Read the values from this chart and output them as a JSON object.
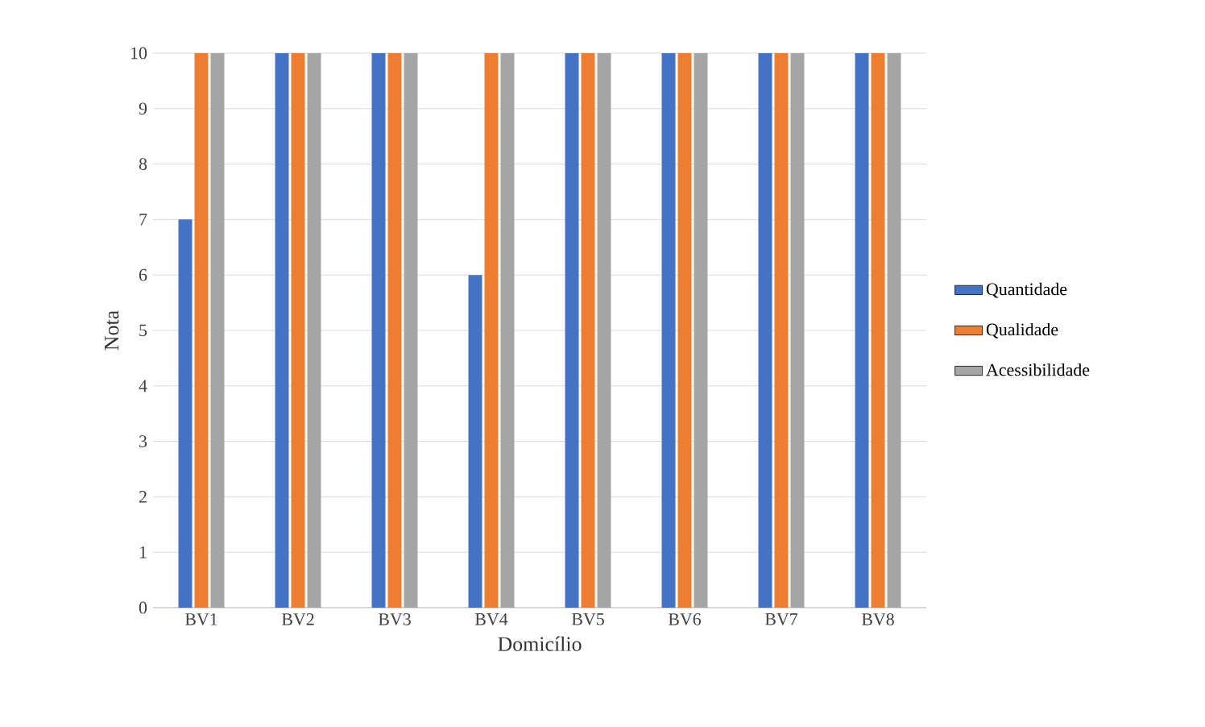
{
  "chart_data": {
    "type": "bar",
    "xlabel": "Domicílio",
    "ylabel": "Nota",
    "categories": [
      "BV1",
      "BV2",
      "BV3",
      "BV4",
      "BV5",
      "BV6",
      "BV7",
      "BV8"
    ],
    "series": [
      {
        "name": "Quantidade",
        "color": "#4472c4",
        "values": [
          7,
          10,
          10,
          6,
          10,
          10,
          10,
          10
        ]
      },
      {
        "name": "Qualidade",
        "color": "#ed7d31",
        "values": [
          10,
          10,
          10,
          10,
          10,
          10,
          10,
          10
        ]
      },
      {
        "name": "Acessibilidade",
        "color": "#a5a5a5",
        "values": [
          10,
          10,
          10,
          10,
          10,
          10,
          10,
          10
        ]
      }
    ],
    "ylim": [
      0,
      10
    ],
    "yticks": [
      0,
      1,
      2,
      3,
      4,
      5,
      6,
      7,
      8,
      9,
      10
    ],
    "grid": "y",
    "legend": "right"
  }
}
